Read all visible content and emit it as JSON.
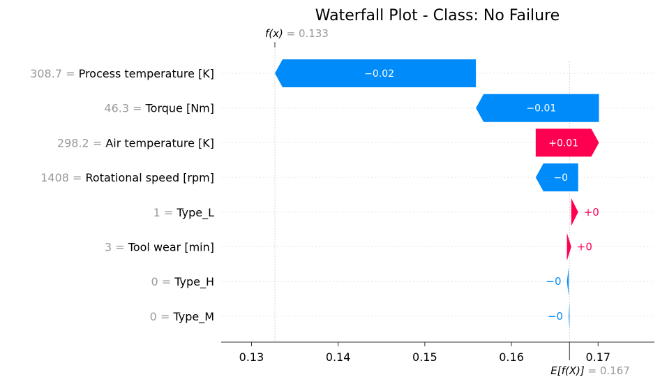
{
  "chart_data": {
    "type": "waterfall",
    "title": "Waterfall Plot - Class: No Failure",
    "fx": {
      "label": "f(x)",
      "eq": " = ",
      "value": "0.133",
      "numeric": 0.1327
    },
    "base": {
      "label": "E[f(X)]",
      "eq": " = ",
      "value": "0.167",
      "numeric": 0.1667
    },
    "xlim": [
      0.1265,
      0.1765
    ],
    "x_ticks": [
      {
        "value": 0.13,
        "label": "0.13"
      },
      {
        "value": 0.14,
        "label": "0.14"
      },
      {
        "value": 0.15,
        "label": "0.15"
      },
      {
        "value": 0.16,
        "label": "0.16"
      },
      {
        "value": 0.17,
        "label": "0.17"
      }
    ],
    "rows": [
      {
        "value_text": "308.7",
        "feature": "Process temperature [K]",
        "start": 0.1327,
        "end": 0.1559,
        "label": "−0.02",
        "sign": -1,
        "label_inside": true
      },
      {
        "value_text": "46.3",
        "feature": "Torque [Nm]",
        "start": 0.1559,
        "end": 0.1701,
        "label": "−0.01",
        "sign": -1,
        "label_inside": true
      },
      {
        "value_text": "298.2",
        "feature": "Air temperature [K]",
        "start": 0.1628,
        "end": 0.1701,
        "label": "+0.01",
        "sign": 1,
        "label_inside": true
      },
      {
        "value_text": "1408",
        "feature": "Rotational speed [rpm]",
        "start": 0.1628,
        "end": 0.1677,
        "label": "−0",
        "sign": -1,
        "label_inside": true
      },
      {
        "value_text": "1",
        "feature": "Type_L",
        "start": 0.1669,
        "end": 0.1677,
        "label": "+0",
        "sign": 1,
        "label_inside": false
      },
      {
        "value_text": "3",
        "feature": "Tool wear [min]",
        "start": 0.1664,
        "end": 0.1669,
        "label": "+0",
        "sign": 1,
        "label_inside": false
      },
      {
        "value_text": "0",
        "feature": "Type_H",
        "start": 0.1664,
        "end": 0.1666,
        "label": "−0",
        "sign": -1,
        "label_inside": false
      },
      {
        "value_text": "0",
        "feature": "Type_M",
        "start": 0.1666,
        "end": 0.1667,
        "label": "−0",
        "sign": -1,
        "label_inside": false
      }
    ],
    "colors": {
      "positive": "#ff0051",
      "negative": "#008bfb",
      "muted_text": "#999999",
      "grid": "#cccccc"
    }
  }
}
